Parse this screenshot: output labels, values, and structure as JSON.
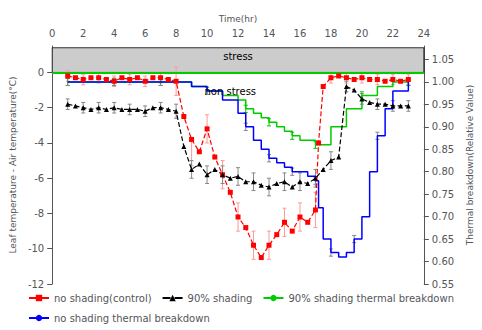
{
  "chart_data": {
    "type": "line",
    "x_label": "Time(hr)",
    "y_label": "Leaf temperature - Air temperature(°C)",
    "y2_label": "Thermal breakdown(Relative Value)",
    "xlim": [
      0,
      24
    ],
    "xticks": [
      0,
      2,
      4,
      6,
      8,
      10,
      12,
      14,
      16,
      18,
      20,
      22,
      24
    ],
    "ylim": [
      -12,
      1.5
    ],
    "yticks": [
      0,
      -2,
      -4,
      -6,
      -8,
      -10,
      -12
    ],
    "y2lim": [
      0.55,
      1.08
    ],
    "y2ticks": [
      0.55,
      {
        "value": 0.6,
        "label": "0.60"
      },
      0.65,
      {
        "value": 0.7,
        "label": "0.70"
      },
      0.75,
      {
        "value": 0.8,
        "label": "0.80"
      },
      0.85,
      {
        "value": 0.9,
        "label": "0.90"
      },
      0.95,
      {
        "value": 1,
        "label": "1.00"
      },
      1.05
    ],
    "grid": false,
    "legend": "bottom",
    "series": [
      {
        "name": "no shading(control)",
        "type": "line",
        "color": "#ff0000",
        "marker": "square",
        "line_style": "dashed",
        "x": [
          1,
          1.5,
          2,
          2.5,
          3,
          3.5,
          4,
          4.5,
          5,
          5.5,
          6,
          6.5,
          7,
          7.5,
          8,
          8.5,
          9,
          9.5,
          10,
          10.5,
          11,
          11.5,
          12,
          12.5,
          13,
          13.5,
          14,
          14.5,
          15,
          15.5,
          16,
          16.5,
          17,
          17.2,
          17.5,
          18,
          18.5,
          19,
          19.5,
          20,
          20.5,
          21,
          21.5,
          22,
          22.5,
          23
        ],
        "values": [
          -0.2,
          -0.3,
          -0.4,
          -0.3,
          -0.3,
          -0.4,
          -0.5,
          -0.3,
          -0.4,
          -0.3,
          -0.5,
          -0.3,
          -0.3,
          -0.4,
          -0.5,
          -2.5,
          -3.8,
          -4.5,
          -3.2,
          -4.8,
          -5.8,
          -6.8,
          -8.2,
          -8.8,
          -9.8,
          -10.5,
          -9.8,
          -9.2,
          -8.5,
          -9.0,
          -8.2,
          -8.5,
          -7.8,
          -4.0,
          -0.8,
          -0.3,
          -0.2,
          -0.3,
          -0.4,
          -0.3,
          -0.4,
          -0.4,
          -0.5,
          -0.4,
          -0.5,
          -0.4
        ],
        "error_bars": {
          "x": [
            1,
            2,
            3,
            4,
            5,
            6,
            7,
            8,
            9,
            10,
            11,
            12,
            13,
            14,
            15,
            16,
            17,
            18,
            19,
            20,
            21,
            22,
            23
          ],
          "y": [
            -0.2,
            -0.4,
            -0.3,
            -0.5,
            -0.4,
            -0.5,
            -0.3,
            -0.5,
            -4.5,
            -3.2,
            -5.8,
            -8.2,
            -9.8,
            -9.8,
            -8.5,
            -8.2,
            -7.8,
            -0.3,
            -0.3,
            -0.3,
            -0.4,
            -0.4,
            -0.4
          ],
          "values": [
            0.3,
            0.3,
            0.3,
            0.3,
            0.3,
            0.3,
            0.3,
            0.8,
            0.8,
            0.8,
            0.8,
            0.8,
            0.8,
            0.8,
            0.8,
            0.8,
            1.0,
            0.3,
            0.3,
            0.3,
            0.3,
            0.3,
            0.3
          ],
          "color": "#ff9999"
        }
      },
      {
        "name": "90% shading",
        "type": "line",
        "color": "#000000",
        "marker": "triangle",
        "line_style": "dashed",
        "x": [
          1,
          1.5,
          2,
          2.5,
          3,
          3.5,
          4,
          4.5,
          5,
          5.5,
          6,
          6.5,
          7,
          7.5,
          8,
          8.5,
          9,
          9.5,
          10,
          10.5,
          11,
          11.5,
          12,
          12.5,
          13,
          13.5,
          14,
          14.5,
          15,
          15.5,
          16,
          16.5,
          17,
          17.5,
          18,
          18.5,
          19,
          19.5,
          20,
          20.5,
          21,
          21.5,
          22,
          22.5,
          23
        ],
        "values": [
          -1.8,
          -1.9,
          -2.0,
          -2.1,
          -2.0,
          -2.1,
          -2.0,
          -2.1,
          -2.1,
          -2.1,
          -2.2,
          -2.0,
          -2.0,
          -2.1,
          -2.2,
          -4.2,
          -5.5,
          -5.2,
          -5.8,
          -5.5,
          -5.8,
          -6.0,
          -5.9,
          -6.2,
          -6.2,
          -6.4,
          -6.5,
          -6.3,
          -6.2,
          -6.5,
          -6.2,
          -6.3,
          -6.0,
          -5.5,
          -5.0,
          -4.8,
          -0.8,
          -1.0,
          -1.5,
          -1.7,
          -1.8,
          -1.8,
          -1.9,
          -1.9,
          -1.9
        ],
        "error_bars": {
          "x": [
            1,
            2,
            3,
            4,
            5,
            6,
            7,
            8,
            9,
            10,
            11,
            12,
            13,
            14,
            15,
            16,
            17,
            18,
            19,
            20,
            21,
            22,
            23
          ],
          "y": [
            -1.8,
            -2.0,
            -2.0,
            -2.0,
            -2.1,
            -2.2,
            -2.0,
            -2.2,
            -5.5,
            -5.8,
            -5.8,
            -5.9,
            -6.2,
            -6.5,
            -6.2,
            -6.2,
            -6.0,
            -5.0,
            -0.8,
            -1.5,
            -1.8,
            -1.9,
            -1.9
          ],
          "values": [
            0.3,
            0.3,
            0.3,
            0.3,
            0.3,
            0.3,
            0.3,
            0.4,
            0.5,
            0.5,
            0.5,
            0.5,
            0.5,
            0.5,
            0.5,
            0.5,
            0.5,
            0.5,
            0.3,
            0.3,
            0.3,
            0.3,
            0.3
          ],
          "color": "#888888"
        }
      },
      {
        "name": "90% shading thermal breakdown",
        "type": "step",
        "axis": "y2",
        "color": "#00cc00",
        "line_style": "solid",
        "x": [
          1,
          2,
          3,
          4,
          5,
          6,
          7,
          8,
          9,
          10,
          11,
          12,
          12.5,
          13,
          13.5,
          14,
          14.5,
          15,
          15.5,
          16,
          16.5,
          17,
          18,
          19,
          20,
          21,
          22,
          23
        ],
        "values": [
          1.0,
          1.0,
          1.0,
          1.0,
          1.0,
          1.0,
          1.0,
          1.0,
          0.99,
          0.98,
          0.97,
          0.96,
          0.94,
          0.93,
          0.92,
          0.91,
          0.9,
          0.89,
          0.88,
          0.87,
          0.87,
          0.86,
          0.9,
          0.94,
          0.97,
          0.99,
          1.0,
          1.0
        ],
        "error_bars": {
          "x": [
            1,
            4,
            7,
            10,
            12.5,
            14,
            15.5,
            17,
            20,
            23
          ],
          "y": [
            1.0,
            1.0,
            1.0,
            0.98,
            0.94,
            0.91,
            0.88,
            0.86,
            0.97,
            1.0
          ],
          "values": [
            0.008,
            0.008,
            0.008,
            0.008,
            0.008,
            0.008,
            0.008,
            0.008,
            0.008,
            0.008
          ],
          "color": "#00cc00"
        }
      },
      {
        "name": "no shading thermal breakdown",
        "type": "step",
        "axis": "y2",
        "color": "#0000ff",
        "line_style": "solid",
        "x": [
          1,
          2,
          3,
          4,
          5,
          6,
          7,
          8,
          9,
          10,
          11,
          12,
          12.5,
          13,
          13.5,
          14,
          14.5,
          15,
          15.5,
          16,
          16.5,
          17,
          17.2,
          17.5,
          18,
          18.5,
          19,
          19.5,
          20,
          20.5,
          21,
          21.5,
          22,
          23
        ],
        "values": [
          1.0,
          1.0,
          1.0,
          1.0,
          1.0,
          1.0,
          1.0,
          1.0,
          0.99,
          0.98,
          0.96,
          0.93,
          0.9,
          0.87,
          0.85,
          0.83,
          0.82,
          0.81,
          0.8,
          0.8,
          0.79,
          0.78,
          0.72,
          0.65,
          0.62,
          0.61,
          0.62,
          0.65,
          0.7,
          0.8,
          0.88,
          0.94,
          0.98,
          1.0
        ],
        "error_bars": {
          "x": [
            1,
            4,
            7,
            10,
            12.5,
            14,
            15.5,
            17,
            18,
            19.5,
            21,
            23
          ],
          "y": [
            1.0,
            1.0,
            1.0,
            0.98,
            0.9,
            0.83,
            0.8,
            0.78,
            0.62,
            0.65,
            0.88,
            1.0
          ],
          "values": [
            0.008,
            0.008,
            0.008,
            0.008,
            0.008,
            0.008,
            0.008,
            0.008,
            0.008,
            0.008,
            0.008,
            0.008
          ],
          "color": "#888888"
        }
      }
    ],
    "stress_band": {
      "x": [
        0,
        24
      ],
      "y": [
        0,
        1.4
      ],
      "color": "#cccccc"
    },
    "reference_line": {
      "y": 0,
      "color": "#00cc00"
    },
    "annotations": [
      {
        "text": "stress",
        "x": 12,
        "y": 0.9
      },
      {
        "text": "non stress",
        "x": 11.5,
        "y": -1.1
      }
    ]
  }
}
